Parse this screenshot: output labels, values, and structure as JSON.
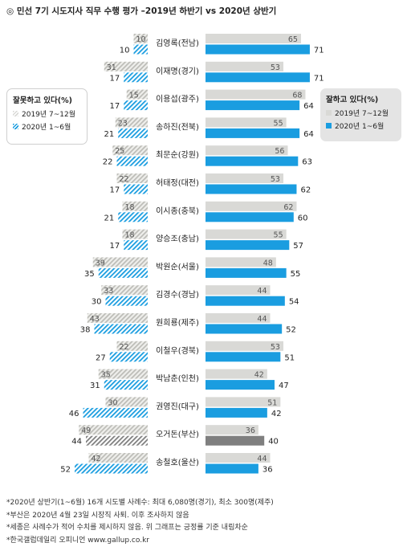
{
  "title": "◎  민선 7기 시도지사 직무 수행 평가 –2019년 하반기 vs 2020년 상반기",
  "legend_left": {
    "title": "잘못하고 있다(%)",
    "items": [
      "2019년 7~12월",
      "2020년 1~6월"
    ]
  },
  "legend_right": {
    "title": "잘하고 있다(%)",
    "items": [
      "2019년 7~12월",
      "2020년 1~6월"
    ]
  },
  "colors": {
    "gray": "#d9d9d6",
    "blue": "#1a9de0",
    "dark_gray": "#7f7f7f",
    "hatch_blue": "#1a9de0",
    "hatch_gray": "#c9c9c4"
  },
  "chart_data": {
    "type": "bar",
    "orientation": "horizontal-diverging",
    "categories": [
      "김영록(전남)",
      "이재명(경기)",
      "이용섭(광주)",
      "송하진(전북)",
      "최문순(강원)",
      "허태정(대전)",
      "이시종(충북)",
      "양승조(충남)",
      "박원순(서울)",
      "김경수(경남)",
      "원희룡(제주)",
      "이철우(경북)",
      "박남춘(인천)",
      "권영진(대구)",
      "오거돈(부산)",
      "송철호(울산)"
    ],
    "series": [
      {
        "name": "잘하고 있다 2019년 7~12월",
        "values": [
          65,
          53,
          68,
          55,
          56,
          53,
          62,
          55,
          48,
          44,
          44,
          53,
          42,
          51,
          36,
          44
        ]
      },
      {
        "name": "잘하고 있다 2020년 1~6월",
        "values": [
          71,
          71,
          64,
          64,
          63,
          62,
          60,
          57,
          55,
          54,
          52,
          51,
          47,
          42,
          40,
          36
        ]
      },
      {
        "name": "잘못하고 있다 2019년 7~12월",
        "values": [
          10,
          31,
          15,
          23,
          25,
          22,
          18,
          18,
          39,
          33,
          43,
          22,
          35,
          30,
          49,
          42
        ]
      },
      {
        "name": "잘못하고 있다 2020년 1~6월",
        "values": [
          10,
          17,
          17,
          21,
          22,
          17,
          21,
          17,
          35,
          30,
          38,
          27,
          31,
          46,
          44,
          52
        ]
      }
    ],
    "highlight_category": "오거돈(부산)"
  },
  "footnotes": [
    "*2020년 상반기(1~6월) 16개 시도별 사례수: 최대 6,080명(경기), 최소 300명(제주)",
    "*부산은 2020년 4월 23일 시장직 사퇴. 이후 조사하지 않음",
    "*세종은 사례수가 적어 수치를 제시하지 않음. 위 그래프는 긍정률 기준 내림차순",
    "*한국갤럽데일리 오피니언 www.gallup.co.kr"
  ]
}
